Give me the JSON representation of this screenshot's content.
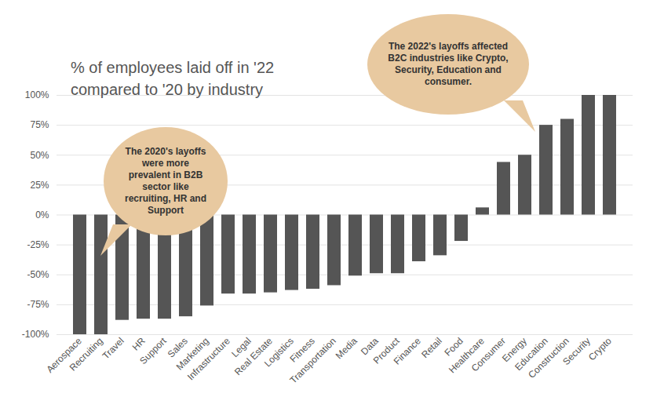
{
  "chart_data": {
    "type": "bar",
    "title": "% of employees laid off in '22 compared to '20 by industry",
    "categories": [
      "Aerospace",
      "Recruiting",
      "Travel",
      "HR",
      "Support",
      "Sales",
      "Marketing",
      "Infrastructure",
      "Legal",
      "Real Estate",
      "Logistics",
      "Fitness",
      "Transportation",
      "Media",
      "Data",
      "Product",
      "Finance",
      "Retail",
      "Food",
      "Healthcare",
      "Consumer",
      "Energy",
      "Education",
      "Construction",
      "Security",
      "Crypto"
    ],
    "values": [
      -100,
      -100,
      -88,
      -87,
      -87,
      -85,
      -76,
      -66,
      -66,
      -65,
      -63,
      -62,
      -59,
      -51,
      -49,
      -49,
      -39,
      -34,
      -22,
      6,
      44,
      50,
      75,
      80,
      100,
      100
    ],
    "color": "#555555",
    "ylim": [
      -100,
      100
    ],
    "yticks": [
      {
        "value": -100,
        "label": "-100%"
      },
      {
        "value": -75,
        "label": "-75%"
      },
      {
        "value": -50,
        "label": "-50%"
      },
      {
        "value": -25,
        "label": "-25%"
      },
      {
        "value": 0,
        "label": "0%"
      },
      {
        "value": 25,
        "label": "25%"
      },
      {
        "value": 50,
        "label": "50%"
      },
      {
        "value": 75,
        "label": "75%"
      },
      {
        "value": 100,
        "label": "100%"
      }
    ],
    "grid": true,
    "annotations": [
      {
        "text": "The 2020's layoffs were more prevalent in B2B sector like recruiting, HR and Support"
      },
      {
        "text": "The 2022's layoffs affected B2C industries like Crypto, Security, Education and consumer."
      }
    ]
  }
}
